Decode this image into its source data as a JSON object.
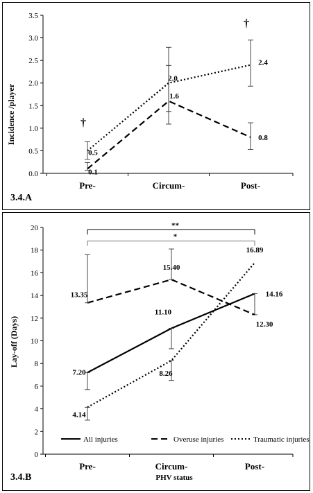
{
  "chart_data": [
    {
      "type": "line",
      "panel_label": "3.4.A",
      "ylabel": "Incidence /player",
      "xlabel": "",
      "ylim": [
        0,
        3.5
      ],
      "y_ticks": [
        "0.0",
        "0.5",
        "1.0",
        "1.5",
        "2.0",
        "2.5",
        "3.0",
        "3.5"
      ],
      "categories": [
        "Pre-",
        "Circum-",
        "Post-"
      ],
      "grid": false,
      "series": [
        {
          "style": "dotted",
          "values": [
            0.5,
            2.0,
            2.4
          ],
          "labels": [
            "0.5",
            "2.0",
            "2.4"
          ],
          "err_low": [
            0.31,
            1.37,
            1.93
          ],
          "err_high": [
            0.7,
            2.79,
            2.95
          ]
        },
        {
          "style": "dashed",
          "values": [
            0.1,
            1.6,
            0.8
          ],
          "labels": [
            "0.1",
            "1.6",
            "0.8"
          ],
          "err_low": [
            0.07,
            1.09,
            0.53
          ],
          "err_high": [
            0.24,
            2.39,
            1.12
          ]
        }
      ],
      "annotations": [
        {
          "text": "†",
          "category": "Pre-",
          "y": 1.05
        },
        {
          "text": "†",
          "category": "Post-",
          "y": 3.25
        }
      ]
    },
    {
      "type": "line",
      "panel_label": "3.4.B",
      "ylabel": "Lay-off (Days)",
      "xlabel": "PHV status",
      "ylim": [
        0,
        20
      ],
      "y_ticks": [
        "0",
        "2",
        "4",
        "6",
        "8",
        "10",
        "12",
        "14",
        "16",
        "18",
        "20"
      ],
      "categories": [
        "Pre-",
        "Circum-",
        "Post-"
      ],
      "grid": false,
      "legend_position": "bottom",
      "series": [
        {
          "name": "All injuries",
          "style": "solid",
          "values": [
            7.2,
            11.1,
            14.16
          ],
          "labels": [
            "7.20",
            "11.10",
            "14.16"
          ],
          "err_low": [
            5.7,
            9.3,
            12.3
          ],
          "err_high": [
            7.2,
            11.1,
            14.16
          ]
        },
        {
          "name": "Overuse injuries",
          "style": "dashed",
          "values": [
            13.35,
            15.4,
            12.3
          ],
          "labels": [
            "13.35",
            "15.40",
            "12.30"
          ],
          "err_low": [
            13.35,
            15.4,
            12.3
          ],
          "err_high": [
            17.6,
            18.1,
            12.3
          ]
        },
        {
          "name": "Traumatic injuries",
          "style": "dotted",
          "values": [
            4.14,
            8.26,
            16.89
          ],
          "labels": [
            "4.14",
            "8.26",
            "16.89"
          ],
          "err_low": [
            3.0,
            6.5,
            16.89
          ],
          "err_high": [
            4.14,
            8.26,
            16.89
          ]
        }
      ],
      "significance": [
        {
          "text": "**",
          "from": "Pre-",
          "to": "Post-",
          "y": 19.8
        },
        {
          "text": "*",
          "from": "Pre-",
          "to": "Post-",
          "y": 18.8
        }
      ]
    }
  ]
}
